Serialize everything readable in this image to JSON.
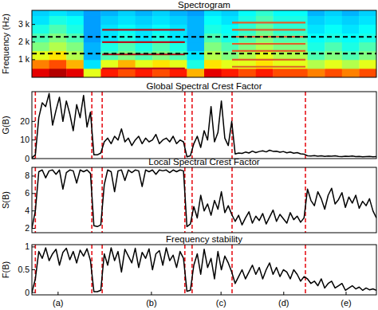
{
  "chart_data": [
    {
      "type": "heatmap",
      "title": "Spectrogram",
      "y_label": "Frequency (Hz)",
      "tick_labels": "y",
      "xlim": [
        0,
        100
      ],
      "ylim": [
        0,
        3800
      ],
      "yticks": [
        {
          "value": 1000,
          "label": "1 k"
        },
        {
          "value": 2000,
          "label": "2 k"
        },
        {
          "value": 3000,
          "label": "3 k"
        }
      ],
      "x": [
        0,
        5,
        10,
        15,
        20,
        25,
        30,
        35,
        40,
        45,
        50,
        55,
        60,
        65,
        70,
        75,
        80,
        85,
        90,
        95,
        100
      ],
      "y": [
        0,
        500,
        1000,
        1500,
        2000,
        2500,
        3000,
        3500,
        3800
      ],
      "zlim": [
        0,
        1
      ],
      "cells": [
        [
          0.9,
          0.95,
          0.9,
          0.6,
          0.85,
          0.8,
          0.85,
          0.8,
          0.85,
          0.7,
          0.9,
          0.85,
          0.8,
          0.85,
          0.8,
          0.8,
          0.75,
          0.8,
          0.75,
          0.8
        ],
        [
          0.75,
          0.8,
          0.7,
          0.35,
          0.6,
          0.7,
          0.6,
          0.65,
          0.6,
          0.4,
          0.65,
          0.6,
          0.6,
          0.65,
          0.6,
          0.6,
          0.55,
          0.6,
          0.55,
          0.6
        ],
        [
          0.6,
          0.65,
          0.55,
          0.3,
          0.45,
          0.5,
          0.45,
          0.5,
          0.45,
          0.35,
          0.55,
          0.5,
          0.55,
          0.6,
          0.55,
          0.55,
          0.45,
          0.5,
          0.45,
          0.5
        ],
        [
          0.5,
          0.55,
          0.5,
          0.3,
          0.4,
          0.45,
          0.4,
          0.45,
          0.4,
          0.3,
          0.5,
          0.45,
          0.5,
          0.55,
          0.5,
          0.5,
          0.4,
          0.45,
          0.4,
          0.45
        ],
        [
          0.45,
          0.5,
          0.45,
          0.28,
          0.35,
          0.4,
          0.35,
          0.4,
          0.35,
          0.3,
          0.45,
          0.4,
          0.45,
          0.5,
          0.45,
          0.45,
          0.38,
          0.4,
          0.38,
          0.4
        ],
        [
          0.4,
          0.45,
          0.4,
          0.28,
          0.35,
          0.38,
          0.35,
          0.38,
          0.35,
          0.3,
          0.4,
          0.38,
          0.42,
          0.48,
          0.42,
          0.42,
          0.35,
          0.38,
          0.35,
          0.38
        ],
        [
          0.35,
          0.4,
          0.38,
          0.28,
          0.33,
          0.35,
          0.33,
          0.35,
          0.33,
          0.3,
          0.38,
          0.35,
          0.4,
          0.45,
          0.4,
          0.4,
          0.33,
          0.35,
          0.33,
          0.35
        ],
        [
          0.33,
          0.35,
          0.33,
          0.28,
          0.3,
          0.33,
          0.3,
          0.33,
          0.3,
          0.28,
          0.35,
          0.33,
          0.38,
          0.42,
          0.38,
          0.38,
          0.3,
          0.33,
          0.3,
          0.33
        ]
      ],
      "band_edges": [
        1350,
        2300
      ],
      "tracks": [
        {
          "start": 20.4,
          "end": 44.4,
          "frequency": 2700,
          "color": "#b5121b"
        },
        {
          "start": 20.4,
          "end": 44.4,
          "frequency": 2000,
          "color": "#b5121b"
        },
        {
          "start": 20.4,
          "end": 44.4,
          "frequency": 1300,
          "color": "#b5121b"
        },
        {
          "start": 20.4,
          "end": 44.4,
          "frequency": 500,
          "color": "#b5121b"
        },
        {
          "start": 58.1,
          "end": 79.4,
          "frequency": 3100,
          "color": "#e0602a"
        },
        {
          "start": 58.1,
          "end": 79.4,
          "frequency": 2700,
          "color": "#e0602a"
        },
        {
          "start": 58.1,
          "end": 79.4,
          "frequency": 2300,
          "color": "#e0602a"
        },
        {
          "start": 58.1,
          "end": 79.4,
          "frequency": 1900,
          "color": "#e0602a"
        },
        {
          "start": 58.1,
          "end": 79.4,
          "frequency": 1500,
          "color": "#e0602a"
        },
        {
          "start": 58.1,
          "end": 79.4,
          "frequency": 1000,
          "color": "#e0602a"
        },
        {
          "start": 58.1,
          "end": 79.4,
          "frequency": 600,
          "color": "#e0602a"
        }
      ]
    },
    {
      "type": "line",
      "title": "Global Spectral Crest Factor",
      "y_label": "G(B)",
      "tick_labels": "y",
      "color": "#000000",
      "xlim": [
        0,
        100
      ],
      "ylim": [
        0,
        36
      ],
      "yticks": [
        0,
        10,
        20
      ],
      "segment_boundaries": [
        1,
        17.4,
        20.4,
        44.4,
        46.5,
        58.1,
        79.4
      ],
      "x": [
        0,
        1,
        2,
        3,
        4,
        5,
        6,
        7,
        8,
        9,
        10,
        11,
        12,
        13,
        14,
        15,
        16,
        17,
        18,
        19,
        20,
        21,
        22,
        23,
        24,
        25,
        26,
        27,
        28,
        29,
        30,
        31,
        32,
        33,
        34,
        35,
        36,
        37,
        38,
        39,
        40,
        41,
        42,
        43,
        44,
        45,
        46,
        47,
        48,
        49,
        50,
        51,
        52,
        53,
        54,
        55,
        56,
        57,
        58,
        59,
        60,
        61,
        62,
        63,
        64,
        65,
        66,
        67,
        68,
        69,
        70,
        71,
        72,
        73,
        74,
        75,
        76,
        77,
        78,
        79,
        80,
        81,
        82,
        83,
        84,
        85,
        86,
        87,
        88,
        89,
        90,
        91,
        92,
        93,
        94,
        95,
        96,
        97,
        98,
        99,
        100
      ],
      "values": [
        0.5,
        2,
        22,
        30,
        28,
        35,
        18,
        26,
        33,
        20,
        31,
        24,
        15,
        29,
        22,
        34,
        17,
        25,
        2,
        2,
        3,
        9,
        11,
        8,
        12,
        10,
        16,
        9,
        11,
        7,
        10,
        12,
        8,
        11,
        9,
        10,
        13,
        8,
        10,
        11,
        9,
        12,
        8,
        10,
        9,
        1,
        1.5,
        8,
        12,
        6,
        15,
        10,
        28,
        9,
        14,
        31,
        11,
        7,
        20,
        2.5,
        3,
        2.8,
        3.5,
        3,
        4,
        3.2,
        3.8,
        4.2,
        3.6,
        4.5,
        3.9,
        4,
        3.4,
        3.8,
        3.1,
        3.5,
        2.9,
        3.2,
        2.6,
        2.4,
        1.5,
        1.4,
        1.6,
        1.3,
        1.5,
        1.2,
        1.4,
        1.3,
        1.5,
        1.2,
        1.1,
        1.3,
        1.2,
        1.4,
        1.1,
        1.2,
        1.0,
        1.1,
        1.2,
        1.0,
        1.1
      ]
    },
    {
      "type": "line",
      "title": "Local Spectral Crest Factor",
      "y_label": "S(B)",
      "tick_labels": "y",
      "color": "#000000",
      "xlim": [
        0,
        100
      ],
      "ylim": [
        1.5,
        9
      ],
      "yticks": [
        2,
        4,
        6,
        8
      ],
      "segment_boundaries": [
        1,
        17.4,
        20.4,
        44.4,
        46.5,
        58.1,
        79.4
      ],
      "x": [
        0,
        1,
        2,
        3,
        4,
        5,
        6,
        7,
        8,
        9,
        10,
        11,
        12,
        13,
        14,
        15,
        16,
        17,
        18,
        19,
        20,
        21,
        22,
        23,
        24,
        25,
        26,
        27,
        28,
        29,
        30,
        31,
        32,
        33,
        34,
        35,
        36,
        37,
        38,
        39,
        40,
        41,
        42,
        43,
        44,
        45,
        46,
        47,
        48,
        49,
        50,
        51,
        52,
        53,
        54,
        55,
        56,
        57,
        58,
        59,
        60,
        61,
        62,
        63,
        64,
        65,
        66,
        67,
        68,
        69,
        70,
        71,
        72,
        73,
        74,
        75,
        76,
        77,
        78,
        79,
        80,
        81,
        82,
        83,
        84,
        85,
        86,
        87,
        88,
        89,
        90,
        91,
        92,
        93,
        94,
        95,
        96,
        97,
        98,
        99,
        100
      ],
      "values": [
        2,
        4,
        8.5,
        8.7,
        7.8,
        8.6,
        8.7,
        8.2,
        8.7,
        6.5,
        8.4,
        8.7,
        8.6,
        7.2,
        8.7,
        8.5,
        8.7,
        8.3,
        2.3,
        2.2,
        2.4,
        7,
        8.7,
        8.5,
        6.2,
        8.6,
        8.7,
        7.5,
        8.7,
        8.4,
        8.7,
        8.6,
        6.8,
        8.7,
        8.5,
        8.7,
        8.2,
        8.7,
        8.6,
        8.7,
        8.4,
        8.7,
        8.5,
        8.7,
        8.6,
        2.2,
        2.5,
        4.5,
        3.2,
        5.8,
        4,
        4.8,
        3.5,
        5.2,
        4.2,
        6.2,
        3.8,
        4.6,
        3.6,
        2.8,
        3.5,
        2.4,
        3.2,
        3.9,
        2.6,
        3.4,
        2.9,
        3.7,
        2.5,
        3.3,
        4.1,
        2.8,
        3.6,
        3.1,
        2.6,
        3.8,
        3.0,
        3.4,
        2.7,
        3.2,
        6.5,
        5.2,
        4.6,
        6.2,
        5.4,
        4.2,
        5.8,
        6.6,
        4.8,
        5.3,
        6.1,
        4.4,
        5.6,
        4.9,
        5.8,
        4.3,
        5.1,
        4.6,
        5.4,
        4.0,
        3.2
      ]
    },
    {
      "type": "line",
      "title": "Frequency stability",
      "y_label": "F(B)",
      "color": "#000000",
      "xlim": [
        0,
        100
      ],
      "ylim": [
        -0.05,
        1.05
      ],
      "yticks": [
        0,
        0.5,
        1
      ],
      "xticks": [
        {
          "value": 7.6,
          "label": "(a)"
        },
        {
          "value": 34.7,
          "label": "(b)"
        },
        {
          "value": 54.9,
          "label": "(c)"
        },
        {
          "value": 73.1,
          "label": "(d)"
        },
        {
          "value": 91.2,
          "label": "(e)"
        }
      ],
      "segment_boundaries": [
        1,
        17.4,
        20.4,
        44.4,
        46.5,
        58.1,
        79.4
      ],
      "x": [
        0,
        1,
        2,
        3,
        4,
        5,
        6,
        7,
        8,
        9,
        10,
        11,
        12,
        13,
        14,
        15,
        16,
        17,
        18,
        19,
        20,
        21,
        22,
        23,
        24,
        25,
        26,
        27,
        28,
        29,
        30,
        31,
        32,
        33,
        34,
        35,
        36,
        37,
        38,
        39,
        40,
        41,
        42,
        43,
        44,
        45,
        46,
        47,
        48,
        49,
        50,
        51,
        52,
        53,
        54,
        55,
        56,
        57,
        58,
        59,
        60,
        61,
        62,
        63,
        64,
        65,
        66,
        67,
        68,
        69,
        70,
        71,
        72,
        73,
        74,
        75,
        76,
        77,
        78,
        79,
        80,
        81,
        82,
        83,
        84,
        85,
        86,
        87,
        88,
        89,
        90,
        91,
        92,
        93,
        94,
        95,
        96,
        97,
        98,
        99,
        100
      ],
      "values": [
        0,
        0.3,
        0.9,
        0.75,
        0.98,
        0.7,
        0.85,
        0.95,
        0.6,
        0.88,
        0.97,
        0.72,
        0.9,
        0.65,
        0.93,
        0.8,
        0.96,
        0.7,
        0.02,
        0.02,
        0.05,
        0.85,
        0.6,
        0.98,
        0.7,
        0.9,
        0.45,
        0.95,
        0.8,
        0.65,
        0.97,
        0.55,
        0.88,
        0.75,
        0.96,
        0.5,
        0.85,
        0.92,
        0.6,
        0.98,
        0.7,
        0.82,
        0.55,
        0.9,
        0.75,
        0.03,
        0.05,
        0.6,
        0.85,
        0.4,
        0.95,
        0.55,
        0.75,
        0.3,
        0.9,
        0.5,
        0.8,
        0.65,
        0.45,
        0.2,
        0.35,
        0.5,
        0.3,
        0.45,
        0.6,
        0.4,
        0.55,
        0.3,
        0.5,
        0.65,
        0.4,
        0.55,
        0.35,
        0.5,
        0.45,
        0.3,
        0.5,
        0.4,
        0.25,
        0.35,
        0.3,
        0.2,
        0.25,
        0.15,
        0.3,
        0.1,
        0.2,
        0.25,
        0.1,
        0.15,
        0.2,
        0.05,
        0.1,
        0.15,
        0.08,
        0.12,
        0.05,
        0.1,
        0.06,
        0.08,
        0.05
      ]
    }
  ]
}
